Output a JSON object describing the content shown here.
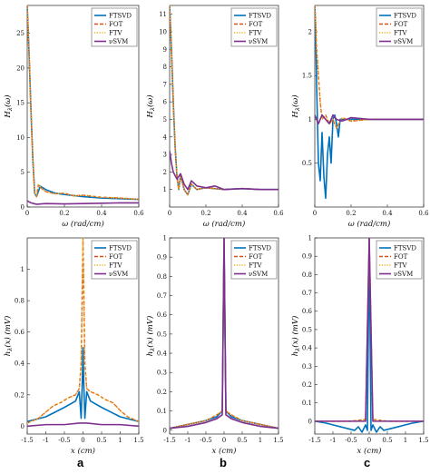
{
  "figure": {
    "panel_letters": [
      "a",
      "b",
      "c"
    ]
  },
  "colors": {
    "FTSVD": "#0072bd",
    "FOT": "#d95319",
    "FTV": "#edb120",
    "nuSVM": "#7e2f8e"
  },
  "chart_data": [
    {
      "id": "top-a",
      "type": "line",
      "xlabel": "ω (rad/cm)",
      "ylabel": "H_λ(ω)",
      "xlim": [
        0,
        0.6
      ],
      "ylim": [
        0,
        29
      ],
      "xticks": [
        "0",
        "0.2",
        "0.4",
        "0.6"
      ],
      "xtick_values": [
        0,
        0.2,
        0.4,
        0.6
      ],
      "yticks": [
        "0",
        "5",
        "10",
        "15",
        "20",
        "25"
      ],
      "ytick_values": [
        0,
        5,
        10,
        15,
        20,
        25
      ],
      "legend": [
        "FTSVD",
        "FOT",
        "FTV",
        "νSVM"
      ],
      "legend_position": "top-right",
      "series": [
        {
          "name": "FTSVD",
          "x": [
            0,
            0.01,
            0.02,
            0.03,
            0.04,
            0.05,
            0.07,
            0.1,
            0.15,
            0.2,
            0.3,
            0.4,
            0.5,
            0.6
          ],
          "y": [
            29,
            22,
            14,
            7,
            2,
            1.5,
            3,
            2.5,
            2,
            1.8,
            1.5,
            1.3,
            1.2,
            1.1
          ]
        },
        {
          "name": "FOT",
          "x": [
            0,
            0.01,
            0.02,
            0.03,
            0.04,
            0.05,
            0.06,
            0.08,
            0.1,
            0.15,
            0.2,
            0.25,
            0.3,
            0.4,
            0.5,
            0.6
          ],
          "y": [
            29,
            22,
            14,
            7,
            2,
            1.5,
            3.2,
            2.6,
            2.2,
            1.9,
            2.0,
            1.6,
            1.7,
            1.4,
            1.3,
            1.1
          ]
        },
        {
          "name": "FTV",
          "x": [
            0,
            0.01,
            0.02,
            0.03,
            0.04,
            0.05,
            0.06,
            0.08,
            0.1,
            0.15,
            0.2,
            0.25,
            0.3,
            0.4,
            0.5,
            0.6
          ],
          "y": [
            29,
            22,
            14,
            7,
            2,
            1.5,
            3.2,
            2.6,
            2.2,
            1.9,
            2.0,
            1.6,
            1.7,
            1.4,
            1.3,
            1.1
          ]
        },
        {
          "name": "νSVM",
          "x": [
            0,
            0.02,
            0.05,
            0.1,
            0.2,
            0.3,
            0.4,
            0.5,
            0.6
          ],
          "y": [
            0.9,
            0.6,
            0.4,
            0.5,
            0.45,
            0.5,
            0.55,
            0.6,
            0.6
          ]
        }
      ]
    },
    {
      "id": "top-b",
      "type": "line",
      "xlabel": "ω (rad/cm)",
      "ylabel": "H_λ(ω)",
      "xlim": [
        0,
        0.6
      ],
      "ylim": [
        0,
        11.5
      ],
      "xticks": [
        "0",
        "0.2",
        "0.4",
        "0.6"
      ],
      "xtick_values": [
        0,
        0.2,
        0.4,
        0.6
      ],
      "yticks": [
        "1",
        "2",
        "3",
        "4",
        "5",
        "6",
        "7",
        "8",
        "9",
        "10",
        "11"
      ],
      "ytick_values": [
        1,
        2,
        3,
        4,
        5,
        6,
        7,
        8,
        9,
        10,
        11
      ],
      "legend": [
        "FTSVD",
        "FOT",
        "FTV",
        "νSVM"
      ],
      "legend_position": "top-right",
      "series": [
        {
          "name": "FTSVD",
          "x": [
            0,
            0.01,
            0.02,
            0.03,
            0.04,
            0.05,
            0.06,
            0.07,
            0.08,
            0.1,
            0.12,
            0.15,
            0.2,
            0.3,
            0.4,
            0.5,
            0.6
          ],
          "y": [
            11.5,
            9,
            6,
            3.5,
            1.8,
            1.0,
            1.8,
            1.4,
            1.0,
            0.7,
            1.3,
            1.0,
            1.1,
            1.0,
            1.05,
            1.0,
            1.0
          ]
        },
        {
          "name": "FOT",
          "x": [
            0,
            0.01,
            0.02,
            0.03,
            0.04,
            0.05,
            0.06,
            0.07,
            0.08,
            0.1,
            0.12,
            0.15,
            0.2,
            0.3,
            0.4,
            0.5,
            0.6
          ],
          "y": [
            11.5,
            9,
            6,
            3.5,
            1.8,
            1.0,
            1.8,
            1.4,
            1.0,
            0.7,
            1.3,
            1.0,
            1.1,
            1.0,
            1.05,
            1.0,
            1.0
          ]
        },
        {
          "name": "FTV",
          "x": [
            0,
            0.01,
            0.02,
            0.03,
            0.04,
            0.05,
            0.06,
            0.07,
            0.08,
            0.1,
            0.12,
            0.15,
            0.2,
            0.3,
            0.4,
            0.5,
            0.6
          ],
          "y": [
            11.5,
            9,
            6,
            3.5,
            1.8,
            1.0,
            1.8,
            1.4,
            1.0,
            0.7,
            1.3,
            1.0,
            1.1,
            1.0,
            1.05,
            1.0,
            1.0
          ]
        },
        {
          "name": "νSVM",
          "x": [
            0,
            0.01,
            0.02,
            0.04,
            0.06,
            0.08,
            0.1,
            0.12,
            0.15,
            0.2,
            0.25,
            0.3,
            0.4,
            0.5,
            0.6
          ],
          "y": [
            3.2,
            2.5,
            2.0,
            1.6,
            1.9,
            1.3,
            1.0,
            1.5,
            1.2,
            1.1,
            1.2,
            1.0,
            1.05,
            1.0,
            1.0
          ]
        }
      ]
    },
    {
      "id": "top-c",
      "type": "line",
      "xlabel": "ω (rad/cm)",
      "ylabel": "H_λ(ω)",
      "xlim": [
        0,
        0.6
      ],
      "ylim": [
        0,
        2.3
      ],
      "xticks": [
        "0",
        "0.2",
        "0.4",
        "0.6"
      ],
      "xtick_values": [
        0,
        0.2,
        0.4,
        0.6
      ],
      "yticks": [
        "0.5",
        "1",
        "1.5",
        "2"
      ],
      "ytick_values": [
        0.5,
        1,
        1.5,
        2
      ],
      "legend": [
        "FTSVD",
        "FOT",
        "FTV",
        "νSVM"
      ],
      "legend_position": "top-right",
      "series": [
        {
          "name": "FTSVD",
          "x": [
            0,
            0.005,
            0.01,
            0.02,
            0.03,
            0.04,
            0.05,
            0.06,
            0.07,
            0.08,
            0.09,
            0.1,
            0.11,
            0.12,
            0.13,
            0.14,
            0.16,
            0.2,
            0.3,
            0.4,
            0.5,
            0.6
          ],
          "y": [
            2.3,
            2.0,
            1.4,
            0.5,
            0.3,
            0.85,
            0.35,
            0.1,
            0.6,
            0.8,
            0.5,
            1.0,
            1.05,
            0.95,
            0.8,
            1.0,
            1.0,
            1.0,
            1.0,
            1.0,
            1.0,
            1.0
          ]
        },
        {
          "name": "FOT",
          "x": [
            0,
            0.005,
            0.01,
            0.02,
            0.03,
            0.04,
            0.06,
            0.08,
            0.1,
            0.12,
            0.15,
            0.2,
            0.3,
            0.4,
            0.5,
            0.6
          ],
          "y": [
            2.3,
            2.1,
            1.8,
            1.5,
            1.2,
            1.0,
            1.05,
            0.95,
            1.0,
            0.9,
            1.02,
            0.98,
            1.0,
            1.0,
            1.0,
            1.0
          ]
        },
        {
          "name": "FTV",
          "x": [
            0,
            0.005,
            0.01,
            0.02,
            0.03,
            0.04,
            0.06,
            0.08,
            0.1,
            0.12,
            0.15,
            0.2,
            0.3,
            0.4,
            0.5,
            0.6
          ],
          "y": [
            2.3,
            2.1,
            1.8,
            1.5,
            1.2,
            1.0,
            1.05,
            0.95,
            1.0,
            0.9,
            1.02,
            0.98,
            1.0,
            1.0,
            1.0,
            1.0
          ]
        },
        {
          "name": "νSVM",
          "x": [
            0,
            0.02,
            0.04,
            0.06,
            0.08,
            0.1,
            0.12,
            0.15,
            0.2,
            0.3,
            0.4,
            0.5,
            0.6
          ],
          "y": [
            1.05,
            0.95,
            1.05,
            1.0,
            0.95,
            1.05,
            1.0,
            0.98,
            1.02,
            1.0,
            1.0,
            1.0,
            1.0
          ]
        }
      ]
    },
    {
      "id": "bottom-a",
      "type": "line",
      "xlabel": "x (cm)",
      "ylabel": "h_λ(x) (mV)",
      "xlim": [
        -1.5,
        1.5
      ],
      "ylim": [
        -0.05,
        1.2
      ],
      "xticks": [
        "-1.5",
        "-1",
        "-0.5",
        "0",
        "0.5",
        "1",
        "1.5"
      ],
      "xtick_values": [
        -1.5,
        -1,
        -0.5,
        0,
        0.5,
        1,
        1.5
      ],
      "yticks": [
        "0",
        "0.2",
        "0.4",
        "0.6",
        "0.8",
        "1"
      ],
      "ytick_values": [
        0,
        0.2,
        0.4,
        0.6,
        0.8,
        1
      ],
      "legend": [
        "FTSVD",
        "FOT",
        "FTV",
        "νSVM"
      ],
      "legend_position": "top-right",
      "series": [
        {
          "name": "FTSVD",
          "x": [
            -1.5,
            -1.0,
            -0.5,
            -0.2,
            -0.1,
            -0.05,
            -0.02,
            0,
            0.02,
            0.05,
            0.1,
            0.2,
            0.5,
            1.0,
            1.5
          ],
          "y": [
            0.03,
            0.06,
            0.12,
            0.16,
            0.22,
            0.05,
            0.28,
            0.5,
            0.28,
            0.05,
            0.22,
            0.16,
            0.12,
            0.06,
            0.03
          ]
        },
        {
          "name": "FOT",
          "x": [
            -1.5,
            -1.2,
            -1.0,
            -0.8,
            -0.6,
            -0.4,
            -0.2,
            -0.1,
            -0.05,
            0,
            0.05,
            0.1,
            0.2,
            0.4,
            0.6,
            0.8,
            1.0,
            1.2,
            1.5
          ],
          "y": [
            0.02,
            0.05,
            0.09,
            0.13,
            0.15,
            0.18,
            0.2,
            0.24,
            0.4,
            1.2,
            0.4,
            0.24,
            0.22,
            0.2,
            0.17,
            0.15,
            0.1,
            0.06,
            0.03
          ]
        },
        {
          "name": "FTV",
          "x": [
            -1.5,
            -1.2,
            -1.0,
            -0.8,
            -0.6,
            -0.4,
            -0.2,
            -0.1,
            -0.05,
            0,
            0.05,
            0.1,
            0.2,
            0.4,
            0.6,
            0.8,
            1.0,
            1.2,
            1.5
          ],
          "y": [
            0.02,
            0.05,
            0.09,
            0.13,
            0.15,
            0.18,
            0.2,
            0.24,
            0.4,
            1.2,
            0.4,
            0.24,
            0.22,
            0.2,
            0.17,
            0.15,
            0.1,
            0.06,
            0.03
          ]
        },
        {
          "name": "νSVM",
          "x": [
            -1.5,
            -1.0,
            -0.5,
            -0.1,
            0,
            0.1,
            0.5,
            1.0,
            1.5
          ],
          "y": [
            0.0,
            0.01,
            0.01,
            0.02,
            0.02,
            0.02,
            0.01,
            0.01,
            0.0
          ]
        }
      ]
    },
    {
      "id": "bottom-b",
      "type": "line",
      "xlabel": "x (cm)",
      "ylabel": "h_λ(x) (mV)",
      "xlim": [
        -1.5,
        1.5
      ],
      "ylim": [
        -0.02,
        1.0
      ],
      "xticks": [
        "-1.5",
        "-1",
        "-0.5",
        "0",
        "0.5",
        "1",
        "1.5"
      ],
      "xtick_values": [
        -1.5,
        -1,
        -0.5,
        0,
        0.5,
        1,
        1.5
      ],
      "yticks": [
        "0",
        "0.1",
        "0.2",
        "0.3",
        "0.4",
        "0.5",
        "0.6",
        "0.7",
        "0.8",
        "0.9",
        "1"
      ],
      "ytick_values": [
        0,
        0.1,
        0.2,
        0.3,
        0.4,
        0.5,
        0.6,
        0.7,
        0.8,
        0.9,
        1
      ],
      "legend": [
        "FTSVD",
        "FOT",
        "FTV",
        "νSVM"
      ],
      "legend_position": "top-right",
      "series": [
        {
          "name": "FTSVD",
          "x": [
            -1.5,
            -1.0,
            -0.5,
            -0.2,
            -0.05,
            0,
            0.05,
            0.2,
            0.5,
            1.0,
            1.5
          ],
          "y": [
            0.01,
            0.03,
            0.05,
            0.07,
            0.1,
            1.0,
            0.1,
            0.07,
            0.05,
            0.03,
            0.01
          ]
        },
        {
          "name": "FOT",
          "x": [
            -1.5,
            -1.0,
            -0.5,
            -0.2,
            -0.05,
            0,
            0.05,
            0.2,
            0.5,
            1.0,
            1.5
          ],
          "y": [
            0.01,
            0.03,
            0.05,
            0.08,
            0.1,
            1.0,
            0.1,
            0.08,
            0.05,
            0.03,
            0.01
          ]
        },
        {
          "name": "FTV",
          "x": [
            -1.5,
            -1.0,
            -0.5,
            -0.2,
            -0.05,
            0,
            0.05,
            0.2,
            0.5,
            1.0,
            1.5
          ],
          "y": [
            0.01,
            0.03,
            0.05,
            0.08,
            0.1,
            1.0,
            0.1,
            0.08,
            0.05,
            0.03,
            0.01
          ]
        },
        {
          "name": "νSVM",
          "x": [
            -1.5,
            -1.0,
            -0.5,
            -0.2,
            -0.05,
            0,
            0.05,
            0.2,
            0.5,
            1.0,
            1.5
          ],
          "y": [
            0.01,
            0.02,
            0.04,
            0.06,
            0.08,
            1.0,
            0.08,
            0.06,
            0.04,
            0.02,
            0.01
          ]
        }
      ]
    },
    {
      "id": "bottom-c",
      "type": "line",
      "xlabel": "x (cm)",
      "ylabel": "h_λ(x) (mV)",
      "xlim": [
        -1.5,
        1.5
      ],
      "ylim": [
        -0.07,
        1.0
      ],
      "xticks": [
        "-1.5",
        "-1",
        "-0.5",
        "0",
        "0.5",
        "1",
        "1.5"
      ],
      "xtick_values": [
        -1.5,
        -1,
        -0.5,
        0,
        0.5,
        1,
        1.5
      ],
      "yticks": [
        "0",
        "0.1",
        "0.2",
        "0.3",
        "0.4",
        "0.5",
        "0.6",
        "0.7",
        "0.8",
        "0.9",
        "1"
      ],
      "ytick_values": [
        0,
        0.1,
        0.2,
        0.3,
        0.4,
        0.5,
        0.6,
        0.7,
        0.8,
        0.9,
        1
      ],
      "legend": [
        "FTSVD",
        "FOT",
        "FTV",
        "νSVM"
      ],
      "legend_position": "top-right",
      "series": [
        {
          "name": "FTSVD",
          "x": [
            -1.5,
            -1.2,
            -1.0,
            -0.8,
            -0.6,
            -0.4,
            -0.3,
            -0.2,
            -0.1,
            -0.05,
            0,
            0.05,
            0.1,
            0.2,
            0.3,
            0.4,
            0.6,
            0.8,
            1.0,
            1.2,
            1.5
          ],
          "y": [
            0.0,
            -0.01,
            -0.02,
            -0.03,
            -0.04,
            -0.05,
            -0.03,
            -0.06,
            -0.02,
            -0.05,
            1.0,
            -0.05,
            -0.02,
            -0.06,
            -0.03,
            -0.05,
            -0.04,
            -0.03,
            -0.02,
            -0.01,
            0.0
          ]
        },
        {
          "name": "FOT",
          "x": [
            -1.5,
            -1.0,
            -0.5,
            -0.1,
            0,
            0.1,
            0.5,
            1.0,
            1.5
          ],
          "y": [
            0.0,
            0.0,
            0.0,
            0.01,
            1.0,
            0.01,
            0.0,
            0.0,
            0.0
          ]
        },
        {
          "name": "FTV",
          "x": [
            -1.5,
            -1.0,
            -0.5,
            -0.1,
            0,
            0.1,
            0.5,
            1.0,
            1.5
          ],
          "y": [
            0.0,
            0.0,
            0.0,
            0.01,
            1.0,
            0.01,
            0.0,
            0.0,
            0.0
          ]
        },
        {
          "name": "νSVM",
          "x": [
            -1.5,
            -1.0,
            -0.5,
            -0.1,
            0,
            0.1,
            0.5,
            1.0,
            1.5
          ],
          "y": [
            0.0,
            0.0,
            0.0,
            0.0,
            1.0,
            0.0,
            0.0,
            0.0,
            0.0
          ]
        }
      ]
    }
  ]
}
